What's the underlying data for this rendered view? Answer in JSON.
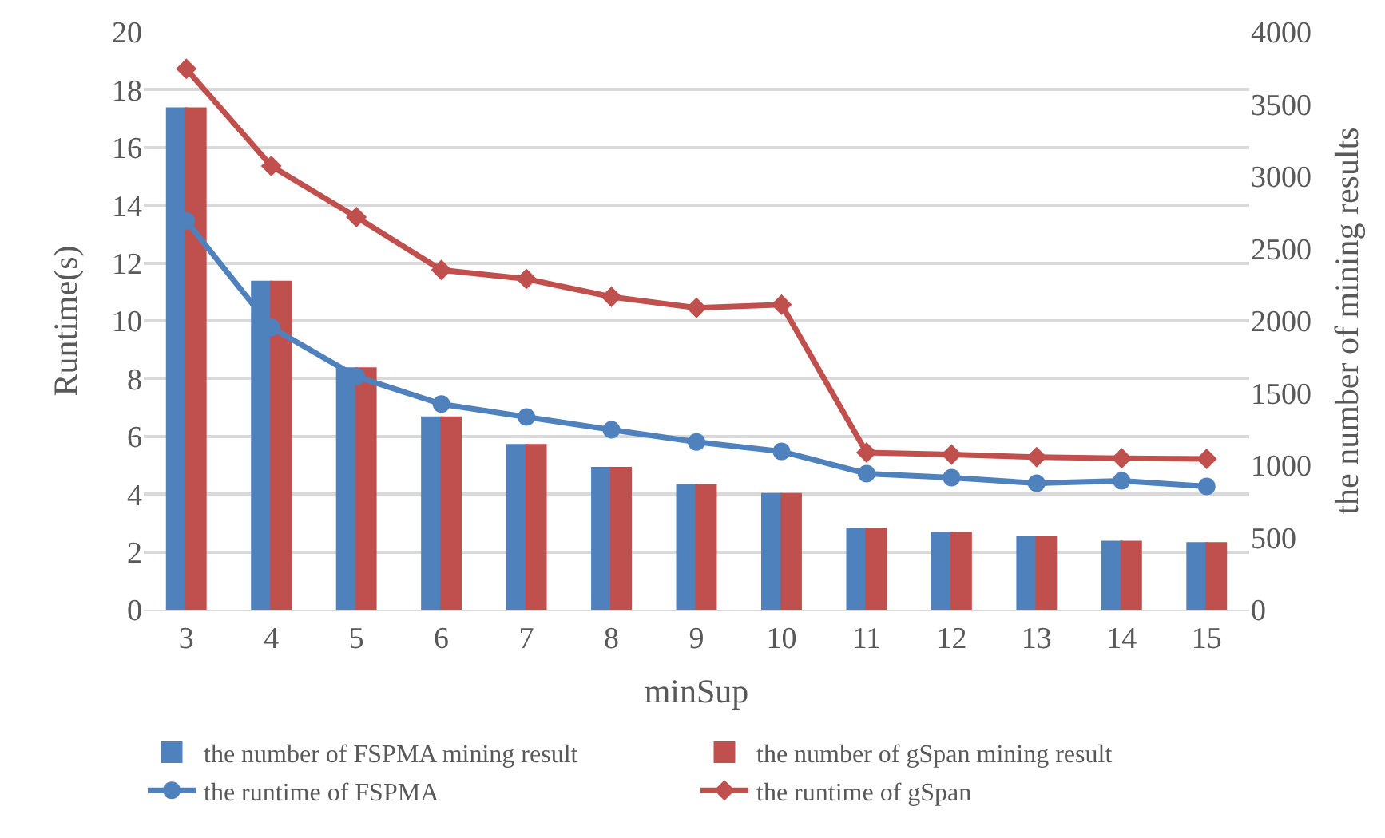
{
  "chart_data": {
    "type": "bar",
    "xlabel": "minSup",
    "ylabel": "Runtime(s)",
    "y2label": "the number of mining results",
    "categories": [
      "3",
      "4",
      "5",
      "6",
      "7",
      "8",
      "9",
      "10",
      "11",
      "12",
      "13",
      "14",
      "15"
    ],
    "series": [
      {
        "name": "the number of FSPMA mining result",
        "axis": "y2",
        "color": "#4f81bd",
        "values": [
          3470,
          2270,
          1670,
          1330,
          1140,
          980,
          860,
          800,
          560,
          530,
          500,
          470,
          460
        ]
      },
      {
        "name": "the number of gSpan mining result",
        "axis": "y2",
        "color": "#c0504d",
        "values": [
          3470,
          2270,
          1670,
          1330,
          1140,
          980,
          860,
          800,
          560,
          530,
          500,
          470,
          460
        ]
      },
      {
        "name": "the runtime of FSPMA",
        "type": "line",
        "axis": "y",
        "marker": "circle",
        "color": "#4f81bd",
        "values": [
          13.46,
          9.77,
          8.07,
          7.12,
          6.67,
          6.23,
          5.81,
          5.48,
          4.71,
          4.57,
          4.38,
          4.46,
          4.27
        ]
      },
      {
        "name": "the runtime of gSpan",
        "type": "line",
        "axis": "y",
        "marker": "diamond",
        "color": "#c0504d",
        "values": [
          18.72,
          15.36,
          13.59,
          11.76,
          11.45,
          10.83,
          10.45,
          10.56,
          5.44,
          5.37,
          5.28,
          5.24,
          5.22
        ]
      }
    ],
    "ylim": [
      0,
      20
    ],
    "yticks": [
      0,
      2,
      4,
      6,
      8,
      10,
      12,
      14,
      16,
      18,
      20
    ],
    "y2lim": [
      0,
      4000
    ],
    "y2ticks": [
      0,
      500,
      1000,
      1500,
      2000,
      2500,
      3000,
      3500,
      4000
    ],
    "grid": "y",
    "legend": "bottom"
  }
}
